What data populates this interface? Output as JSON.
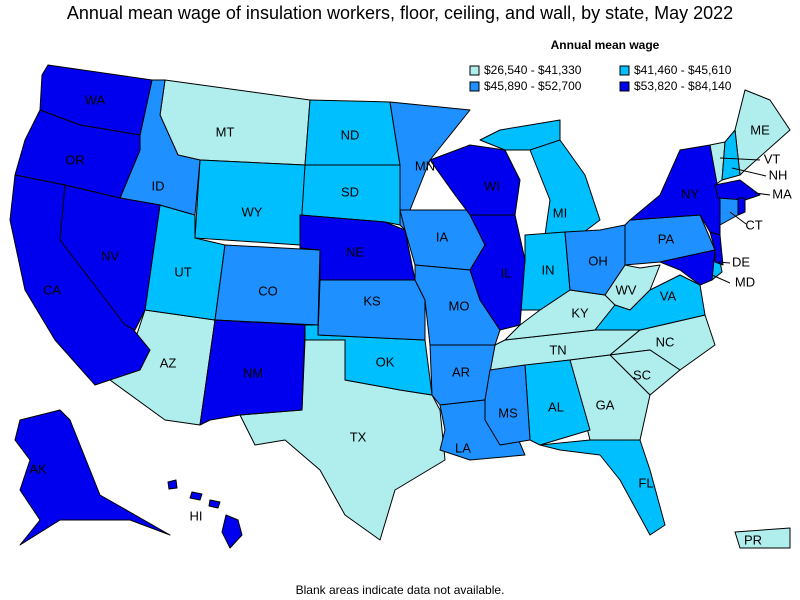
{
  "title": "Annual mean wage of insulation workers, floor, ceiling, and wall, by state, May 2022",
  "legend": {
    "title": "Annual mean wage",
    "items": [
      {
        "label": "$26,540 - $41,330",
        "color": "#b0eeee",
        "states": [
          "MT",
          "AZ",
          "TX",
          "TN",
          "KY",
          "WV",
          "NC",
          "SC",
          "GA",
          "ME",
          "VT",
          "PR"
        ]
      },
      {
        "label": "$41,460 - $45,610",
        "color": "#00bfff",
        "states": [
          "ND",
          "SD",
          "WY",
          "UT",
          "OK",
          "MI",
          "IN",
          "AL",
          "FL",
          "VA",
          "NH",
          "DE"
        ]
      },
      {
        "label": "$45,890 - $52,700",
        "color": "#1e90ff",
        "states": [
          "ID",
          "CO",
          "KS",
          "MN",
          "IA",
          "MO",
          "AR",
          "LA",
          "MS",
          "OH",
          "PA",
          "CT"
        ]
      },
      {
        "label": "$53,820 - $84,140",
        "color": "#0000ee",
        "states": [
          "WA",
          "OR",
          "CA",
          "NV",
          "NM",
          "NE",
          "WI",
          "IL",
          "NY",
          "MA",
          "MD",
          "AK",
          "HI"
        ]
      }
    ]
  },
  "footnote": "Blank areas indicate data not available."
}
